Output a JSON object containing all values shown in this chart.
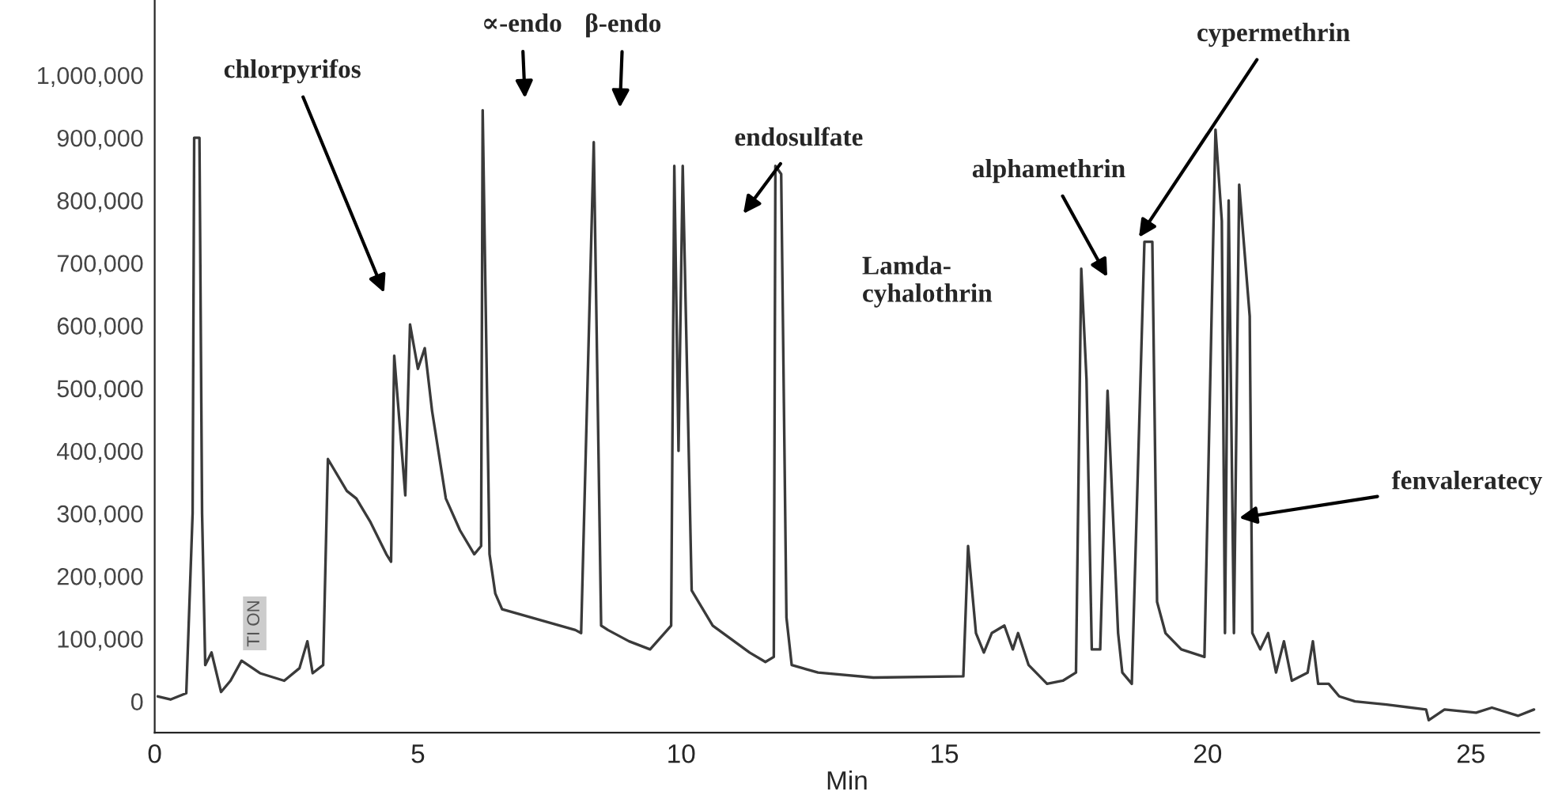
{
  "chart_data": {
    "type": "line",
    "xlabel": "Min",
    "xlim": [
      0,
      26.3
    ],
    "xticks": [
      0,
      5,
      10,
      15,
      20,
      25
    ],
    "ylim": [
      -50000,
      1120000
    ],
    "yticks": [
      {
        "value": 0,
        "label": "0"
      },
      {
        "value": 100000,
        "label": "100,000"
      },
      {
        "value": 200000,
        "label": "200,000"
      },
      {
        "value": 300000,
        "label": "300,000"
      },
      {
        "value": 400000,
        "label": "400,000"
      },
      {
        "value": 500000,
        "label": "500,000"
      },
      {
        "value": 600000,
        "label": "600,000"
      },
      {
        "value": 700000,
        "label": "700,000"
      },
      {
        "value": 800000,
        "label": "800,000"
      },
      {
        "value": 900000,
        "label": "900,000"
      },
      {
        "value": 1000000,
        "label": "1,000,000"
      }
    ],
    "grid": false,
    "legend": false,
    "series": [
      {
        "color": "#3a3a3a",
        "x": [
          0.06,
          0.3,
          0.6,
          0.72,
          0.75,
          0.85,
          0.9,
          0.96,
          1.08,
          1.26,
          1.44,
          1.65,
          2.0,
          2.46,
          2.75,
          2.9,
          3.0,
          3.2,
          3.29,
          3.65,
          3.83,
          4.1,
          4.4,
          4.49,
          4.55,
          4.76,
          4.85,
          5.0,
          5.13,
          5.27,
          5.53,
          5.8,
          6.07,
          6.2,
          6.23,
          6.36,
          6.47,
          6.6,
          7.99,
          8.1,
          8.34,
          8.48,
          8.61,
          9.01,
          9.41,
          9.81,
          9.87,
          9.95,
          10.03,
          10.2,
          10.6,
          11.3,
          11.6,
          11.76,
          11.79,
          11.9,
          12.0,
          12.1,
          12.6,
          13.65,
          15.36,
          15.45,
          15.6,
          15.75,
          15.9,
          16.14,
          16.3,
          16.4,
          16.6,
          16.95,
          17.25,
          17.5,
          17.6,
          17.7,
          17.8,
          17.96,
          18.1,
          18.3,
          18.38,
          18.56,
          18.8,
          18.95,
          19.04,
          19.2,
          19.5,
          19.94,
          20.15,
          20.27,
          20.33,
          20.4,
          20.5,
          20.6,
          20.8,
          20.85,
          21.0,
          21.15,
          21.3,
          21.45,
          21.6,
          21.9,
          22.0,
          22.1,
          22.3,
          22.5,
          22.8,
          23.4,
          24.15,
          24.2,
          24.5,
          25.1,
          25.4,
          25.9,
          26.2
        ],
        "values": [
          8000,
          3000,
          13000,
          300000,
          900000,
          900000,
          300000,
          58000,
          78000,
          15000,
          33000,
          65000,
          45000,
          33000,
          53000,
          96000,
          45000,
          58000,
          387000,
          336000,
          324000,
          286000,
          235000,
          223000,
          552000,
          329000,
          602000,
          531000,
          564000,
          463000,
          324000,
          273000,
          235000,
          248000,
          944000,
          235000,
          172000,
          147000,
          114000,
          109000,
          893000,
          121000,
          114000,
          96000,
          83000,
          121000,
          855000,
          400000,
          855000,
          177000,
          121000,
          78000,
          63000,
          71000,
          855000,
          842000,
          134000,
          58000,
          46000,
          38000,
          40000,
          248000,
          109000,
          78000,
          109000,
          121000,
          83000,
          109000,
          58000,
          28000,
          33000,
          46000,
          691000,
          514000,
          83000,
          83000,
          496000,
          109000,
          46000,
          28000,
          734000,
          734000,
          159000,
          109000,
          83000,
          71000,
          913000,
          767000,
          109000,
          800000,
          109000,
          825000,
          615000,
          109000,
          83000,
          109000,
          46000,
          96000,
          33000,
          46000,
          96000,
          28000,
          28000,
          8000,
          0,
          -5000,
          -13000,
          -30000,
          -13000,
          -18000,
          -10000,
          -23000,
          -13000
        ]
      }
    ],
    "annotations": [
      "chlorpyrifos",
      "∝-endo",
      "β-endo",
      "endosulfate",
      "alphamethrin",
      "cypermethrin",
      {
        "text": "fenvaleratecy",
        "x": 20.6,
        "y": 293000
      },
      "Lamda-\ncyhalothrin",
      {
        "text": "TI ON",
        "x": 1.9,
        "y": 45000
      }
    ]
  }
}
